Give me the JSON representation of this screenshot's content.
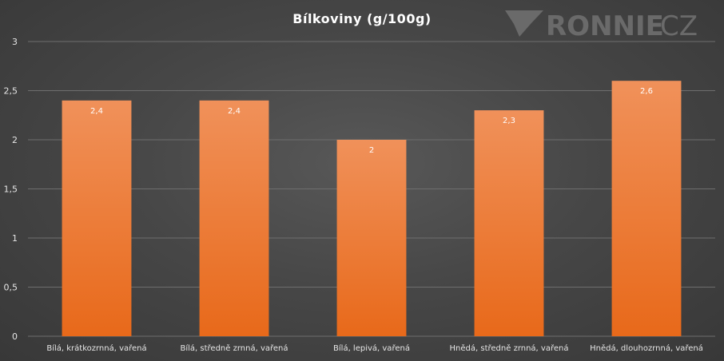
{
  "chart_data": {
    "type": "bar",
    "title": "Bílkoviny (g/100g)",
    "categories": [
      "Bílá, krátkozrnná, vařená",
      "Bílá, středně zrnná, vařená",
      "Bílá, lepivá, vařená",
      "Hnědá, středně zrnná, vařená",
      "Hnědá, dlouhozrnná, vařená"
    ],
    "values": [
      2.4,
      2.4,
      2.0,
      2.3,
      2.6
    ],
    "value_labels": [
      "2,4",
      "2,4",
      "2",
      "2,3",
      "2,6"
    ],
    "ylim": [
      0,
      3
    ],
    "y_ticks": [
      0,
      0.5,
      1,
      1.5,
      2,
      2.5,
      3
    ],
    "y_tick_labels": [
      "0",
      "0,5",
      "1",
      "1,5",
      "2",
      "2,5",
      "3"
    ],
    "grid": true,
    "bar_color_top": "#f0915a",
    "bar_color_bottom": "#e8691a"
  },
  "watermark": {
    "brand": "RONNIE",
    "suffix": "CZ",
    "icon": "ronnie-chevron-logo"
  }
}
